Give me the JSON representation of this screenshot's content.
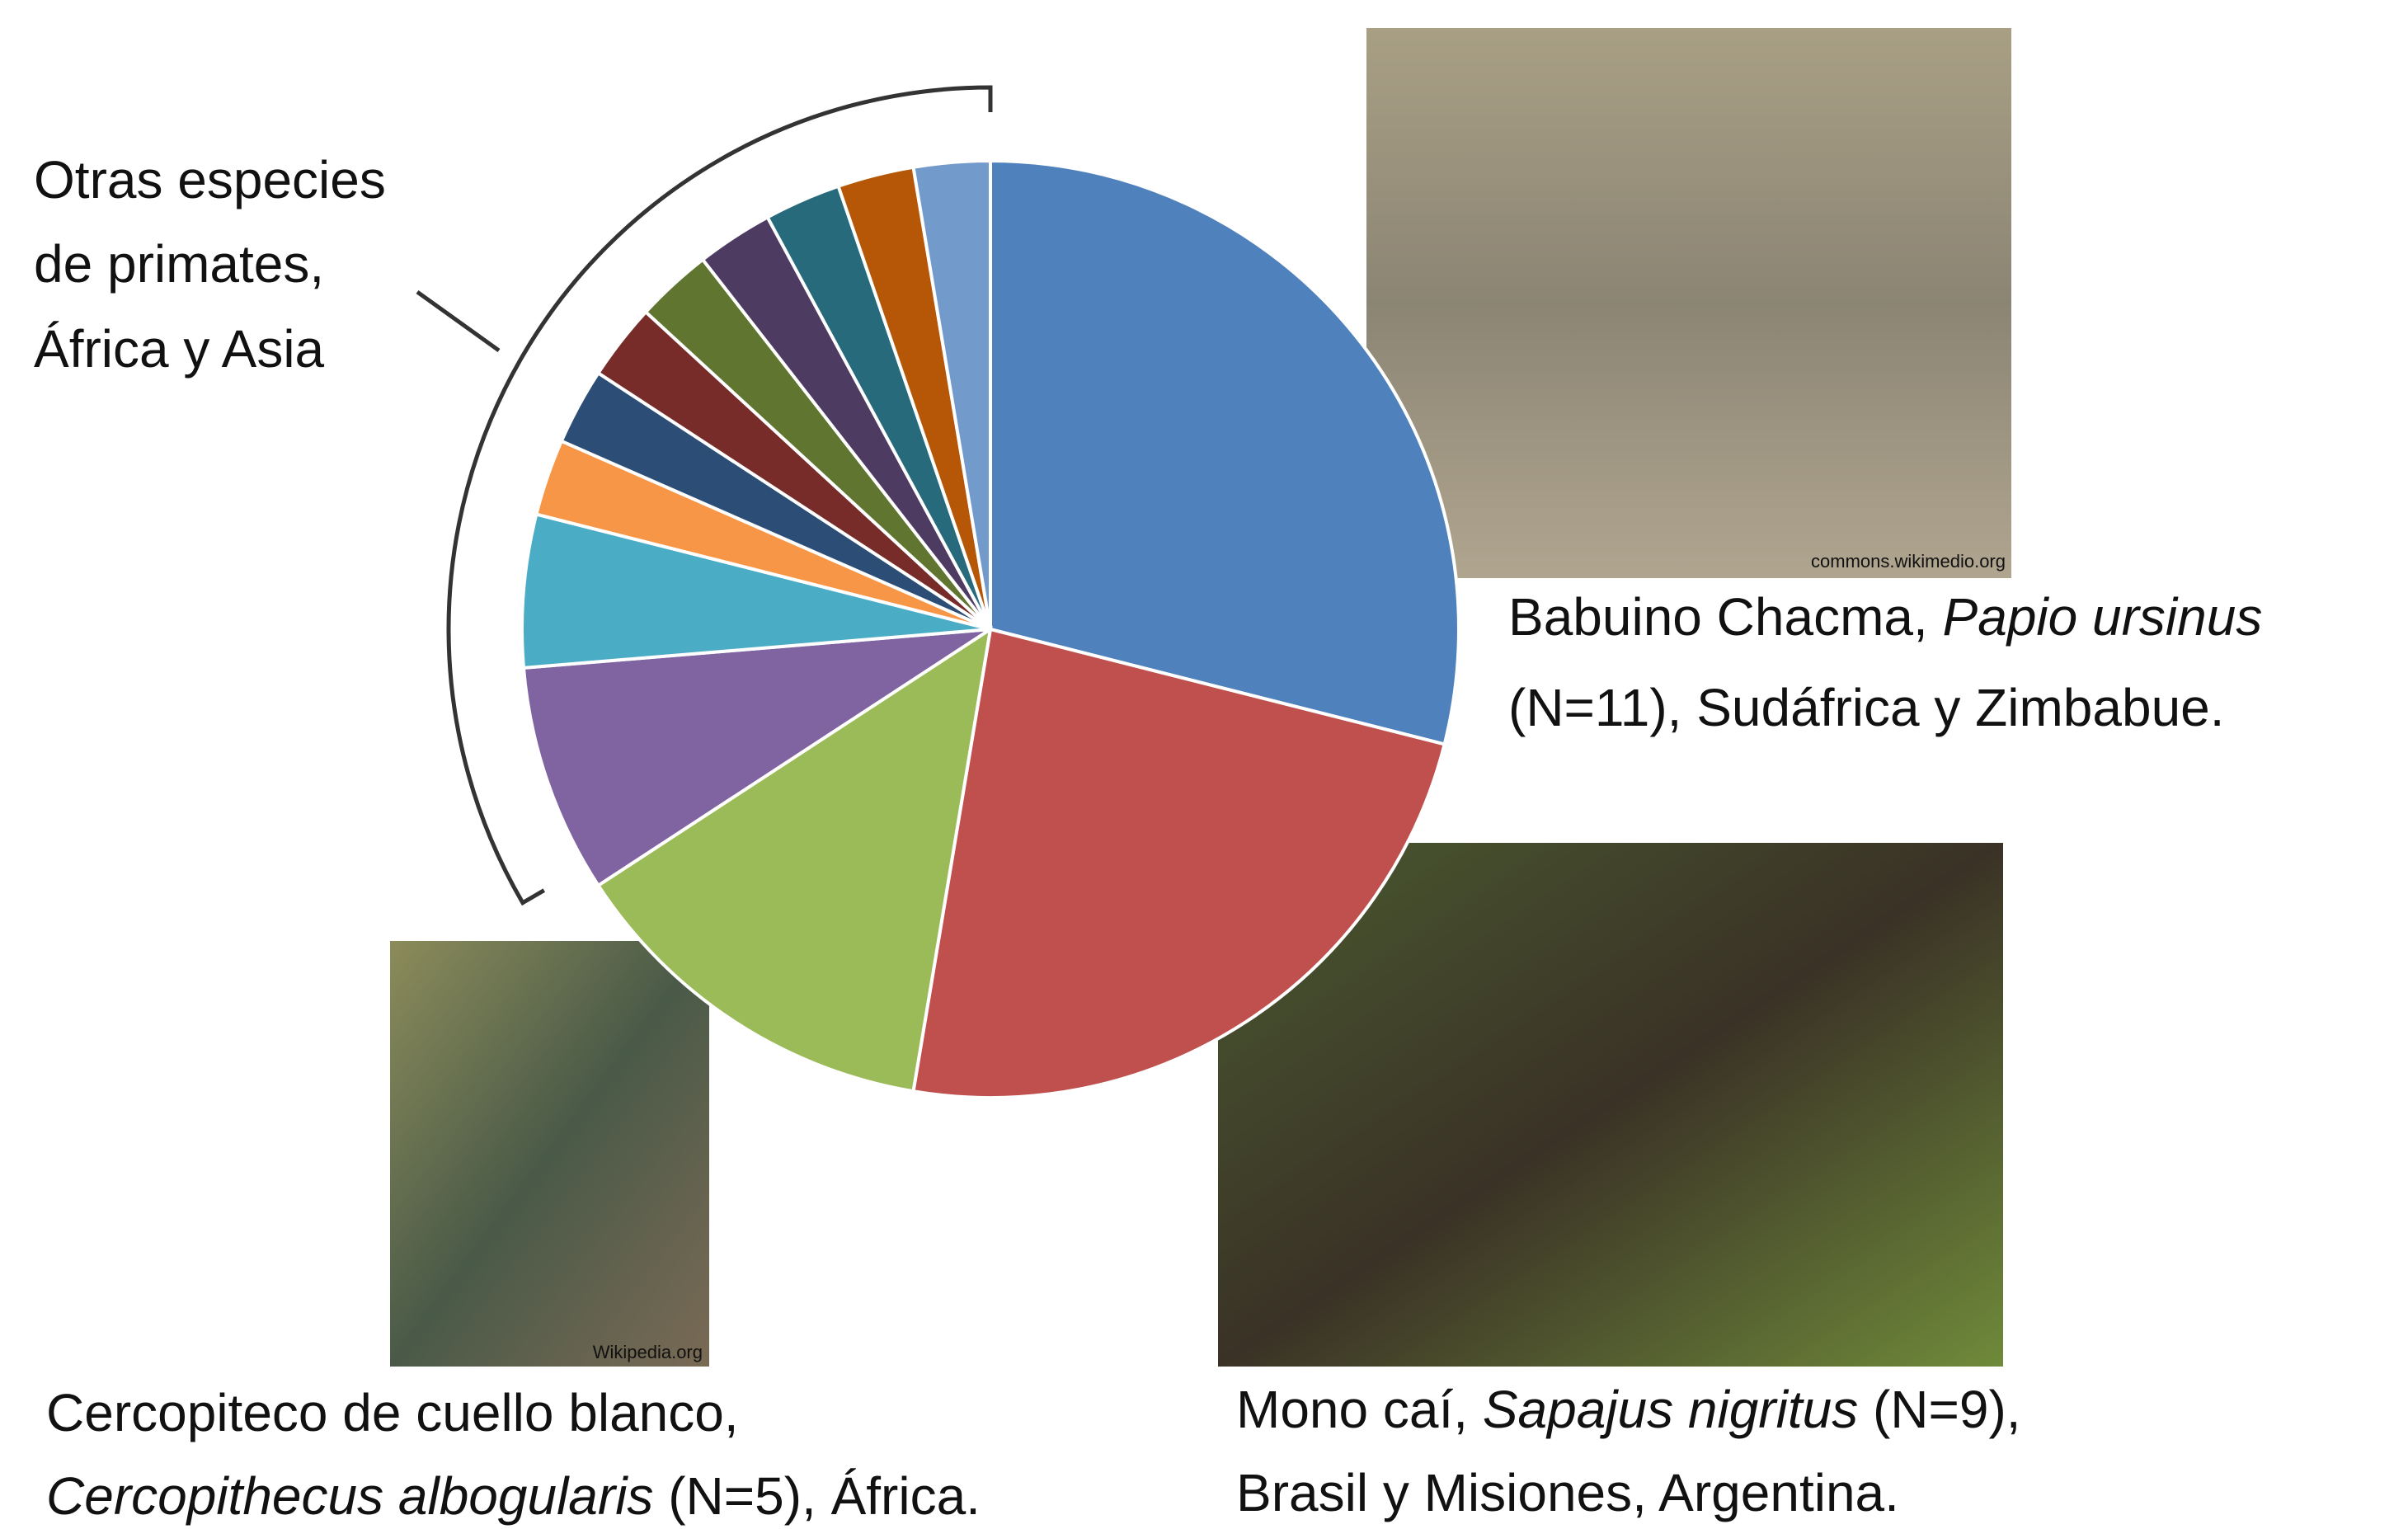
{
  "chart_data": {
    "type": "pie",
    "values": [
      11,
      9,
      5,
      3,
      2,
      1,
      1,
      1,
      1,
      1,
      1,
      1,
      1
    ],
    "colors": [
      "#4f81bd",
      "#c0504d",
      "#9bbb59",
      "#8064a2",
      "#4bacc6",
      "#f79646",
      "#2c4d75",
      "#772c2a",
      "#5f7530",
      "#4d3b62",
      "#276a7c",
      "#b65708",
      "#729aca"
    ],
    "annotation": [
      "Otras especies",
      "de primates,",
      "África y Asia"
    ]
  },
  "photos": [
    {
      "credit": "commons.wikimedio.org",
      "caption": [
        [
          "Babuino Chacma, ",
          "Papio ursinus"
        ],
        [
          "(N=11), Sudáfrica y Zimbabue."
        ]
      ]
    },
    {
      "credit": "Wikipedia.org",
      "caption": [
        [
          "Cercopiteco de cuello blanco,"
        ],
        [
          "Cercopithecus albogularis",
          " (N=5), África."
        ]
      ]
    },
    {
      "caption": [
        [
          "Mono caí, ",
          "Sapajus nigritus",
          " (N=9),"
        ],
        [
          "Brasil y Misiones, Argentina."
        ]
      ]
    }
  ]
}
